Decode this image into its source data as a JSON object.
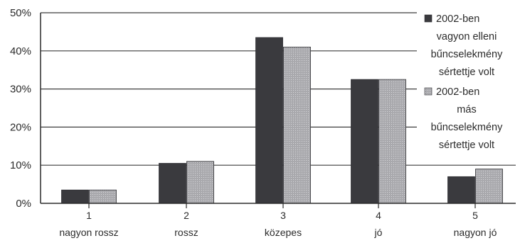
{
  "chart_data": {
    "type": "bar",
    "title": "",
    "xlabel": "",
    "ylabel": "",
    "ylim": [
      0,
      50
    ],
    "y_ticks": [
      "0%",
      "10%",
      "20%",
      "30%",
      "40%",
      "50%"
    ],
    "y_unit": "%",
    "grid": true,
    "legend_position": "right",
    "categories": [
      {
        "num": "1",
        "name": "nagyon rossz"
      },
      {
        "num": "2",
        "name": "rossz"
      },
      {
        "num": "3",
        "name": "közepes"
      },
      {
        "num": "4",
        "name": "jó"
      },
      {
        "num": "5",
        "name": "nagyon jó"
      }
    ],
    "series": [
      {
        "legend_lines": [
          "2002-ben",
          "vagyon elleni",
          "bűncselekmény",
          "sértettje volt"
        ],
        "color": "#3a3a3e",
        "values": [
          3.5,
          10.5,
          43.5,
          32.5,
          7
        ]
      },
      {
        "legend_lines": [
          "2002-ben",
          "más",
          "bűncselekmény",
          "sértettje volt"
        ],
        "color": "#a9a9ad",
        "values": [
          3.5,
          11,
          41,
          32.5,
          9
        ]
      }
    ]
  }
}
